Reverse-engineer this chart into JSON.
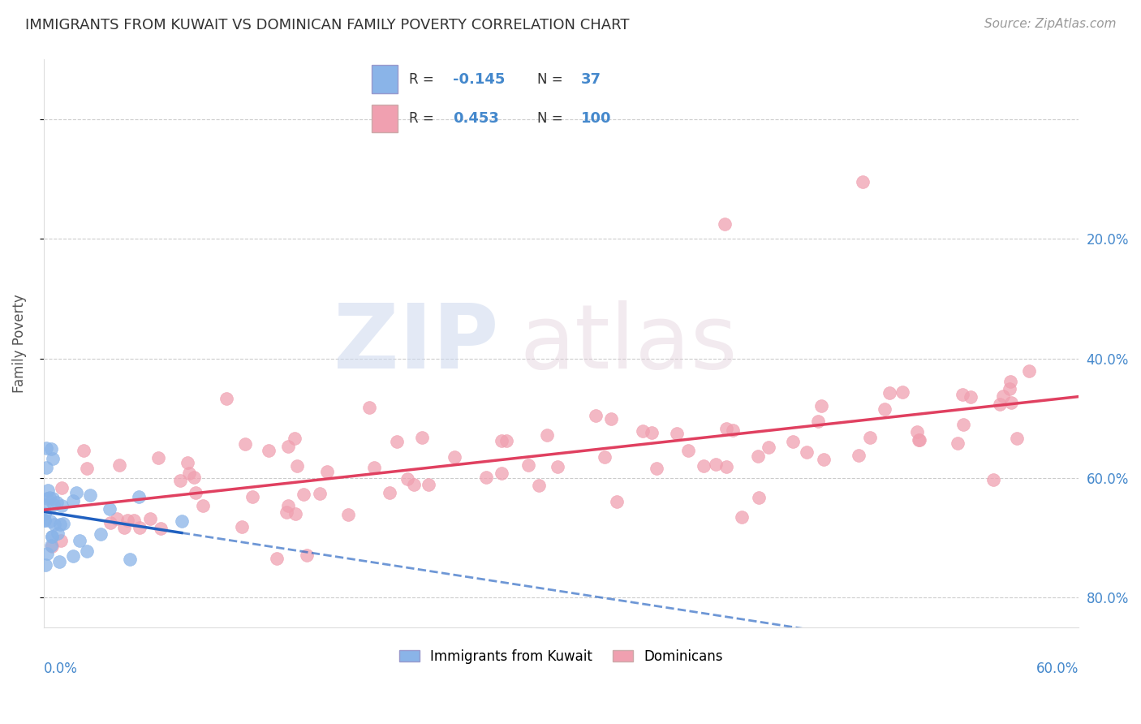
{
  "title": "IMMIGRANTS FROM KUWAIT VS DOMINICAN FAMILY POVERTY CORRELATION CHART",
  "source": "Source: ZipAtlas.com",
  "ylabel": "Family Poverty",
  "xlim": [
    0.0,
    0.6
  ],
  "ylim": [
    -0.05,
    0.9
  ],
  "yticks": [
    0.0,
    0.2,
    0.4,
    0.6,
    0.8
  ],
  "kuwait_color": "#8ab4e8",
  "dominican_color": "#f0a0b0",
  "kuwait_line_color": "#2060c0",
  "dominican_line_color": "#e04060",
  "kuwait_R": -0.145,
  "kuwait_N": 37,
  "dominican_R": 0.453,
  "dominican_N": 100,
  "legend_label_kuwait": "Immigrants from Kuwait",
  "legend_label_dominican": "Dominicans",
  "right_ytick_labels": [
    "80.0%",
    "60.0%",
    "40.0%",
    "20.0%",
    ""
  ]
}
